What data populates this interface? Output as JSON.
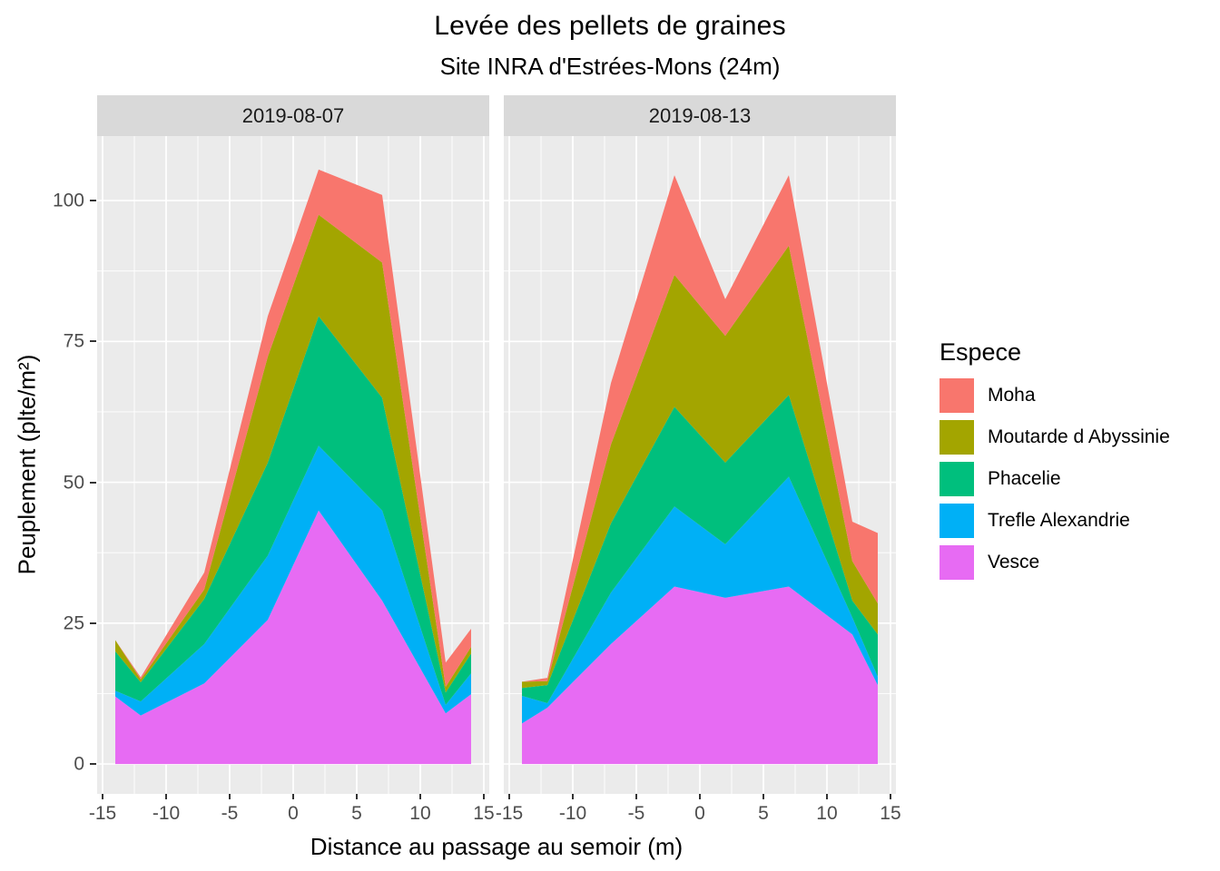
{
  "title": "Levée des pellets de graines",
  "subtitle": "Site INRA d'Estrées-Mons (24m)",
  "panel_style": {
    "background": "#EBEBEB",
    "strip_background": "#D9D9D9",
    "grid_color": "#FFFFFF",
    "tick_color": "#333333",
    "tick_label_color": "#4D4D4D"
  },
  "x_axis": {
    "label": "Distance au passage au semoir (m)",
    "major_ticks": [
      -15,
      -10,
      -5,
      0,
      5,
      10,
      15
    ],
    "minor_ticks": [
      -12.5,
      -7.5,
      -2.5,
      2.5,
      7.5,
      12.5
    ],
    "tick_labels": [
      "-15",
      "-10",
      "-5",
      "0",
      "5",
      "10",
      "15"
    ]
  },
  "y_axis": {
    "label": "Peuplement (plte/m²)",
    "major_ticks": [
      0,
      25,
      50,
      75,
      100
    ],
    "minor_ticks": [
      12.5,
      37.5,
      62.5,
      87.5
    ],
    "tick_labels": [
      "0",
      "25",
      "50",
      "75",
      "100"
    ]
  },
  "legend": {
    "title": "Espece",
    "items": [
      {
        "label": "Moha",
        "color": "#F8766D"
      },
      {
        "label": "Moutarde d Abyssinie",
        "color": "#A3A500"
      },
      {
        "label": "Phacelie",
        "color": "#00BF7D"
      },
      {
        "label": "Trefle Alexandrie",
        "color": "#00B0F6"
      },
      {
        "label": "Vesce",
        "color": "#E76BF3"
      }
    ]
  },
  "chart_data": {
    "type": "area",
    "stacked": true,
    "stack_order_note": "series listed bottom-to-top of the stack",
    "title": "Levée des pellets de graines",
    "subtitle": "Site INRA d'Estrées-Mons (24m)",
    "xlabel": "Distance au passage au semoir (m)",
    "ylabel": "Peuplement (plte/m²)",
    "xlim": [
      -15.43,
      15.43
    ],
    "ylim": [
      0,
      105.5
    ],
    "grid": true,
    "legend_position": "right",
    "x": [
      -14,
      -12,
      -7,
      -2,
      2,
      7,
      12,
      14
    ],
    "facets": [
      {
        "label": "2019-08-07",
        "series": [
          {
            "name": "Vesce",
            "color": "#E76BF3",
            "values": [
              12.0,
              8.6,
              14.3,
              25.6,
              45.0,
              29.0,
              9.0,
              12.4
            ]
          },
          {
            "name": "Trefle Alexandrie",
            "color": "#00B0F6",
            "values": [
              1.0,
              2.5,
              7.0,
              11.4,
              11.5,
              16.0,
              1.5,
              3.7
            ]
          },
          {
            "name": "Phacelie",
            "color": "#00BF7D",
            "values": [
              7.0,
              3.4,
              8.0,
              16.5,
              23.0,
              20.0,
              2.2,
              3.5
            ]
          },
          {
            "name": "Moutarde d Abyssinie",
            "color": "#A3A500",
            "values": [
              2.0,
              0.5,
              1.7,
              18.8,
              18.0,
              24.0,
              1.0,
              1.2
            ]
          },
          {
            "name": "Moha",
            "color": "#F8766D",
            "values": [
              0.0,
              0.4,
              3.0,
              7.2,
              8.0,
              12.0,
              4.3,
              3.2
            ]
          }
        ]
      },
      {
        "label": "2019-08-13",
        "series": [
          {
            "name": "Vesce",
            "color": "#E76BF3",
            "values": [
              7.2,
              10.0,
              21.3,
              31.5,
              29.5,
              31.5,
              23.0,
              14.0
            ]
          },
          {
            "name": "Trefle Alexandrie",
            "color": "#00B0F6",
            "values": [
              4.9,
              0.8,
              9.1,
              14.2,
              9.5,
              19.5,
              3.0,
              1.5
            ]
          },
          {
            "name": "Phacelie",
            "color": "#00BF7D",
            "values": [
              1.4,
              3.2,
              12.3,
              17.7,
              14.5,
              14.5,
              3.0,
              7.5
            ]
          },
          {
            "name": "Moutarde d Abyssinie",
            "color": "#A3A500",
            "values": [
              1.1,
              0.7,
              14.0,
              23.4,
              22.5,
              26.5,
              7.0,
              5.5
            ]
          },
          {
            "name": "Moha",
            "color": "#F8766D",
            "values": [
              0.0,
              0.6,
              10.9,
              17.7,
              6.5,
              12.5,
              7.0,
              12.5
            ]
          }
        ]
      }
    ]
  }
}
